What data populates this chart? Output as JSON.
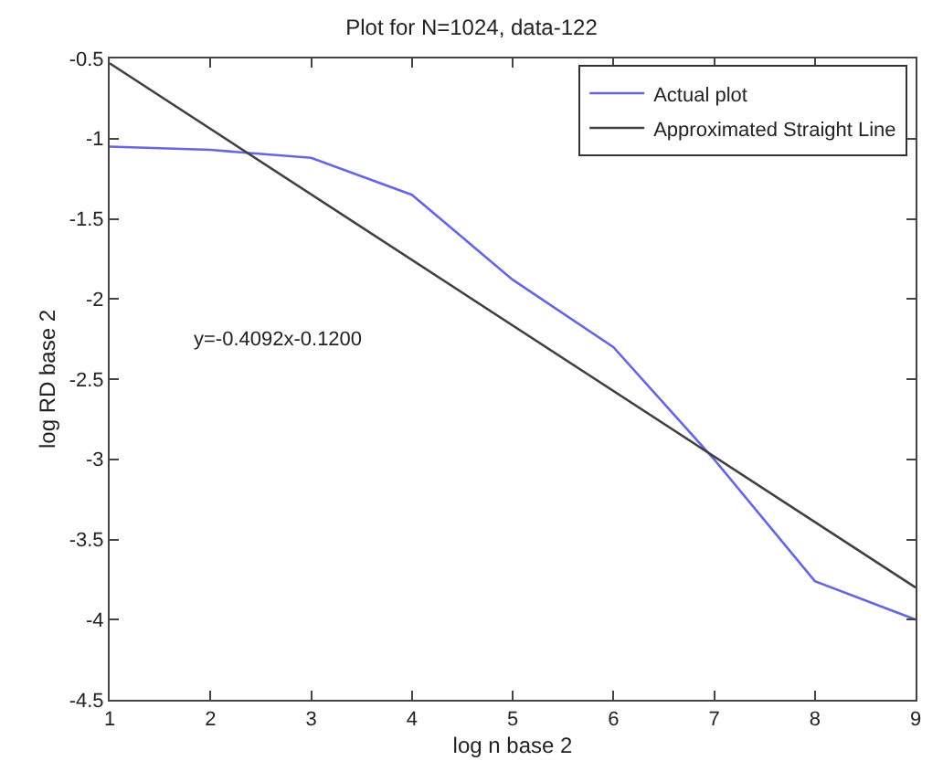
{
  "chart_data": {
    "type": "line",
    "title": "Plot for N=1024, data-122",
    "xlabel": "log n base 2",
    "ylabel": "log RD base 2",
    "annotations": [
      "y=-0.4092x-0.1200"
    ],
    "series": [
      {
        "name": "Actual plot",
        "color": "#6666e0",
        "x": [
          1,
          2,
          3,
          4,
          5,
          6,
          7,
          8,
          9
        ],
        "values": [
          -1.05,
          -1.07,
          -1.12,
          -1.35,
          -1.88,
          -2.3,
          -3.0,
          -3.76,
          -4.0
        ]
      },
      {
        "name": "Approximated Straight Line",
        "color": "#404040",
        "x": [
          1,
          9
        ],
        "values": [
          -0.53,
          -3.8
        ]
      }
    ],
    "xlim": [
      1,
      9
    ],
    "xticks": [
      1,
      2,
      3,
      4,
      5,
      6,
      7,
      8,
      9
    ],
    "ylim": [
      -4.5,
      -0.5
    ],
    "yticks": [
      -4.5,
      -4,
      -3.5,
      -3,
      -2.5,
      -2,
      -1.5,
      -1,
      -0.5
    ],
    "legend": "top right",
    "marker": "none",
    "line_style": "solid"
  }
}
